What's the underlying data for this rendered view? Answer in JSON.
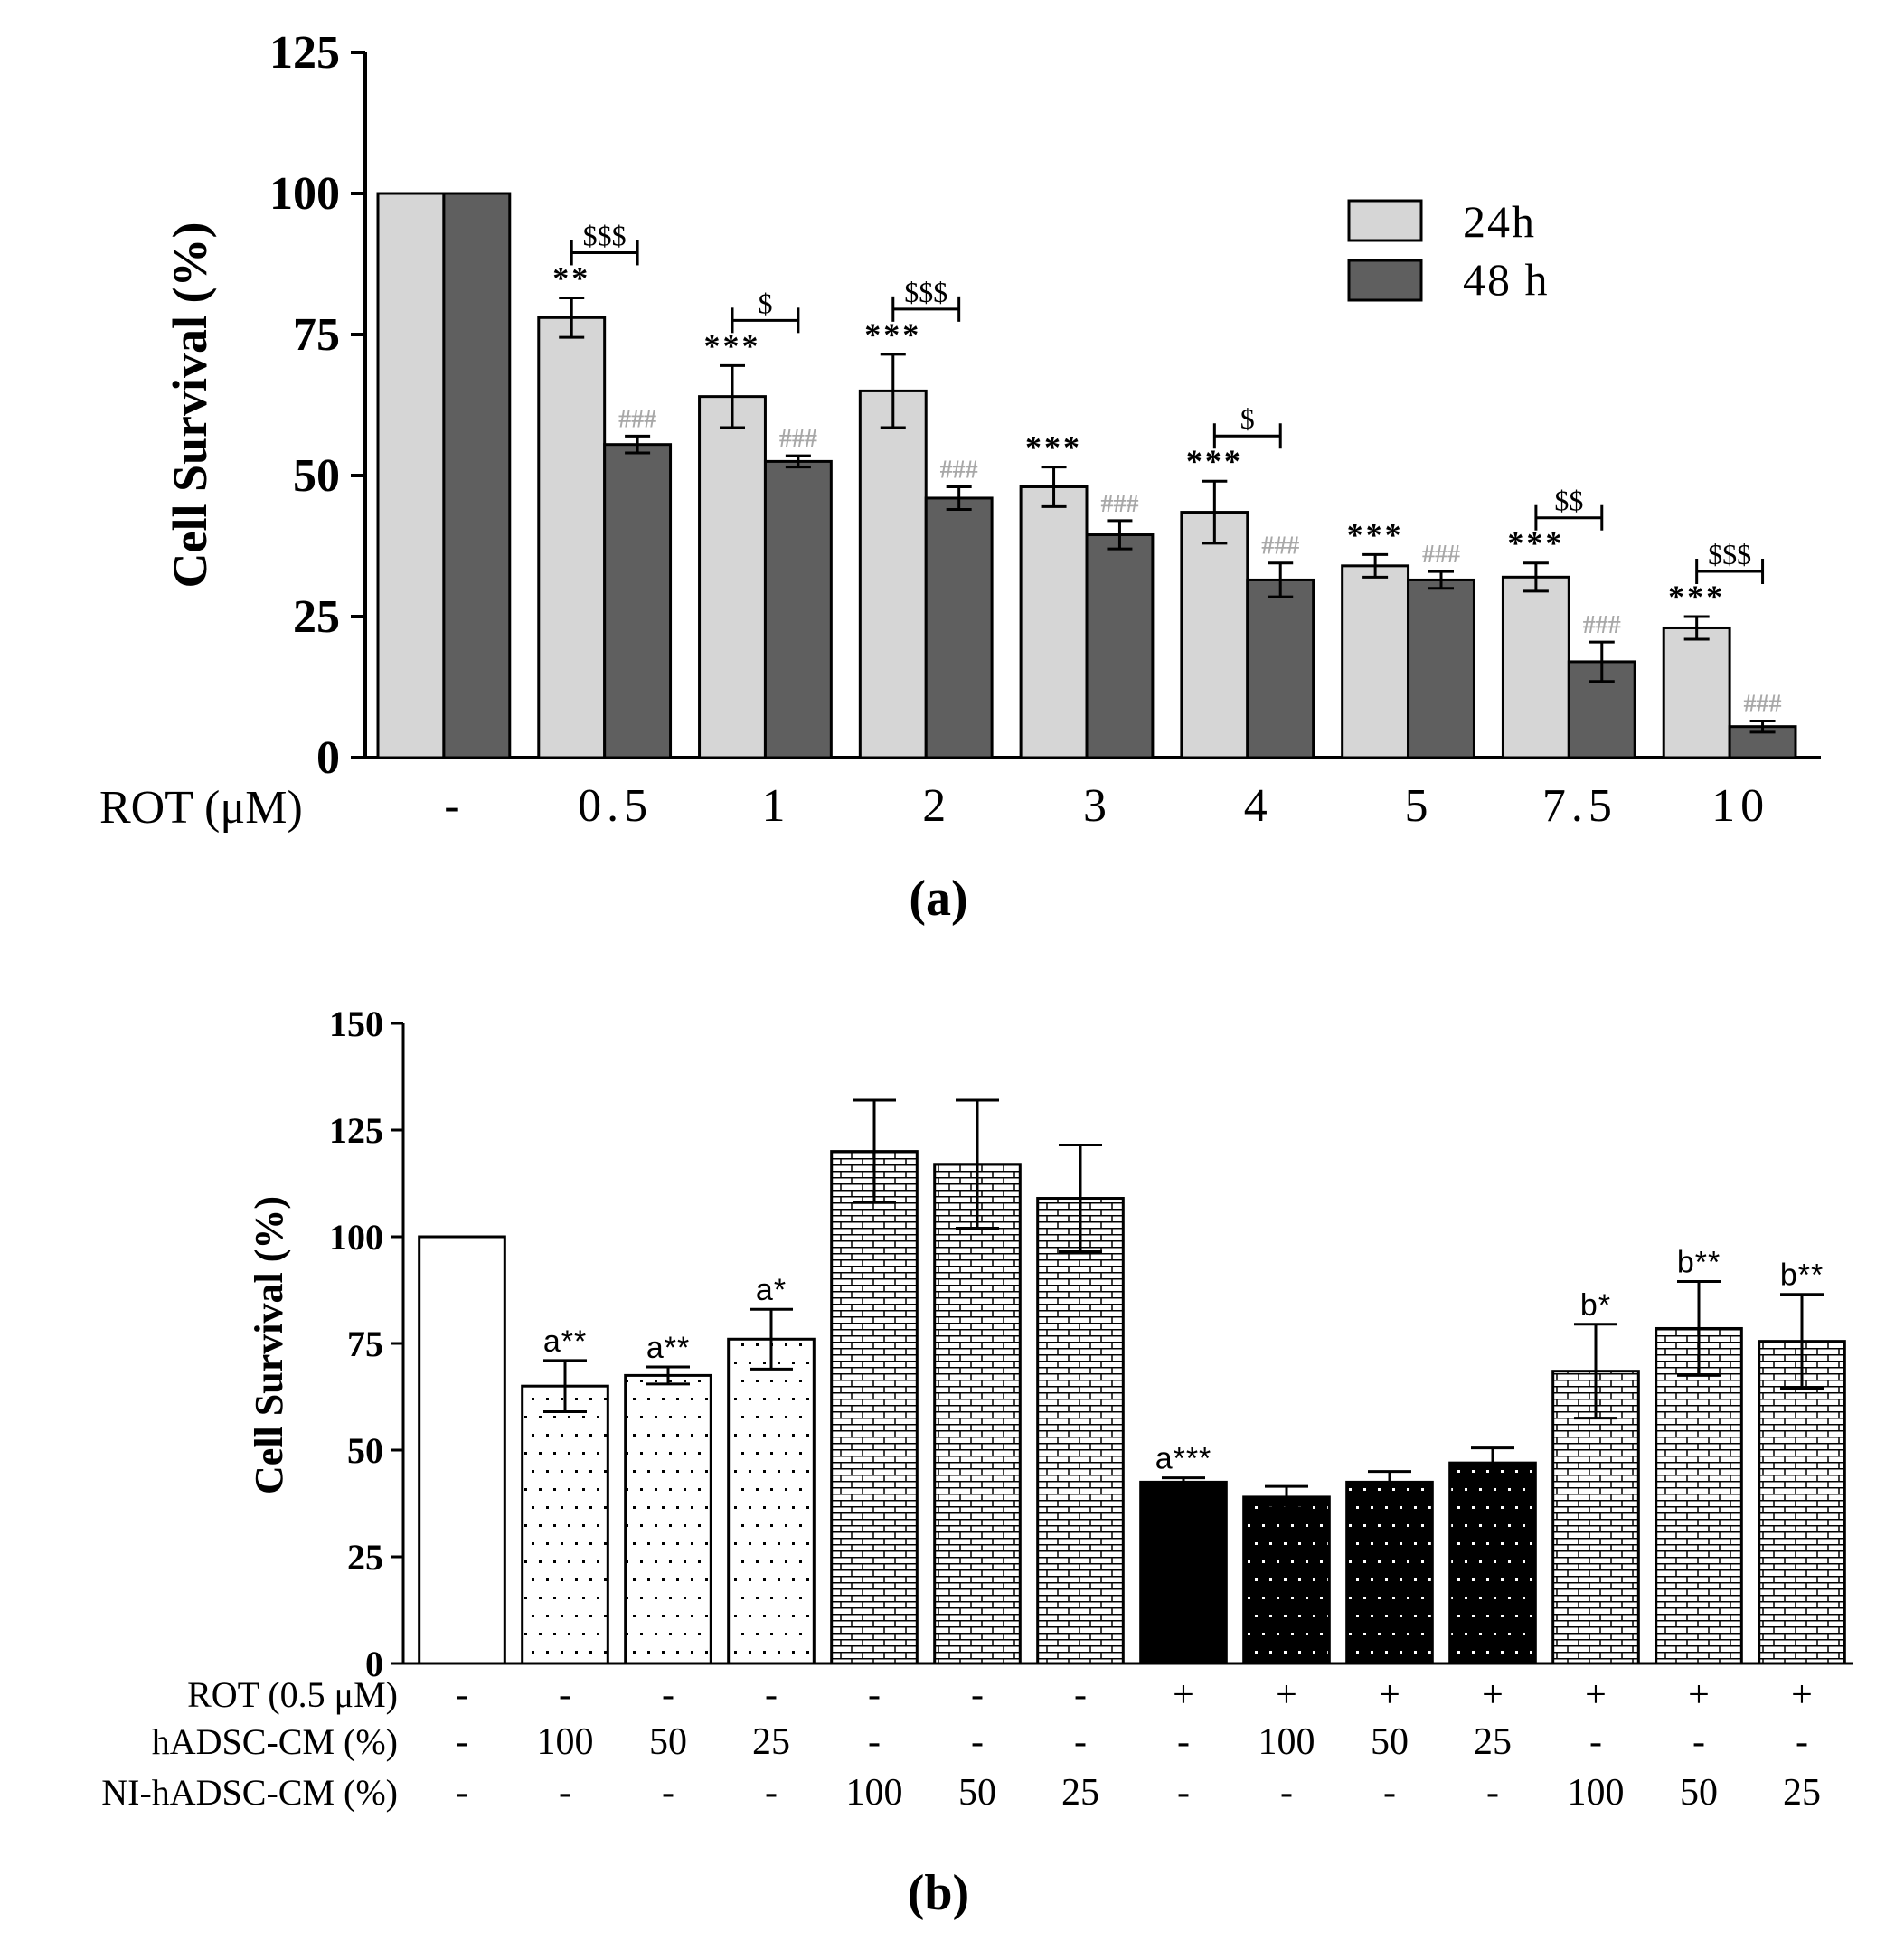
{
  "chart_data": [
    {
      "type": "bar",
      "panel": "(a)",
      "ylabel": "Cell Survival (%)",
      "xlabel": "ROT (μM)",
      "ylim": [
        0,
        125
      ],
      "yticks": [
        "0",
        "25",
        "50",
        "75",
        "100",
        "125"
      ],
      "categories": [
        "-",
        "0.5",
        "1",
        "2",
        "3",
        "4",
        "5",
        "7.5",
        "10"
      ],
      "series": [
        {
          "name": "24h",
          "color": "#d6d6d6",
          "values": [
            100,
            78,
            64,
            65,
            48,
            43.5,
            34,
            32,
            23
          ],
          "errors": [
            0,
            3.5,
            5.5,
            6.5,
            3.5,
            5.5,
            2,
            2.5,
            2
          ],
          "annotations": [
            "",
            "**",
            "***",
            "***",
            "***",
            "***",
            "***",
            "***",
            "***"
          ]
        },
        {
          "name": "48 h",
          "color": "#5f5f5f",
          "values": [
            100,
            55.5,
            52.5,
            46,
            39.5,
            31.5,
            31.5,
            17,
            5.5
          ],
          "errors": [
            0,
            1.5,
            1,
            2,
            2.5,
            3,
            1.5,
            3.5,
            1
          ],
          "annotations": [
            "",
            "###",
            "###",
            "###",
            "###",
            "###",
            "###",
            "###",
            "###"
          ]
        }
      ],
      "comparisons": [
        {
          "category": "0.5",
          "label": "$$$"
        },
        {
          "category": "1",
          "label": "$"
        },
        {
          "category": "2",
          "label": "$$$"
        },
        {
          "category": "4",
          "label": "$"
        },
        {
          "category": "7.5",
          "label": "$$"
        },
        {
          "category": "10",
          "label": "$$$"
        }
      ]
    },
    {
      "type": "bar",
      "panel": "(b)",
      "ylabel": "Cell Survival (%)",
      "ylim": [
        0,
        150
      ],
      "yticks": [
        "0",
        "25",
        "50",
        "75",
        "100",
        "125",
        "150"
      ],
      "values": [
        100,
        65,
        67.5,
        76,
        120,
        117,
        109,
        42.5,
        39,
        42.5,
        47,
        68.5,
        78.5,
        75.5
      ],
      "errors": [
        0,
        6,
        2,
        7,
        12,
        15,
        12.5,
        1,
        2.5,
        2.5,
        3.5,
        11,
        11,
        11
      ],
      "annotations": [
        "",
        "a**",
        "a**",
        "a*",
        "",
        "",
        "",
        "a***",
        "",
        "",
        "",
        "b*",
        "b**",
        "b**"
      ],
      "fills": [
        "white",
        "white-dots",
        "white-dots",
        "white-dots",
        "white-bricks",
        "white-bricks",
        "white-bricks",
        "black",
        "black-dots",
        "black-dots",
        "black-dots",
        "white-bricks",
        "white-bricks",
        "white-bricks"
      ],
      "condition_rows": [
        {
          "label": "ROT (0.5 μM)",
          "values": [
            "-",
            "-",
            "-",
            "-",
            "-",
            "-",
            "-",
            "+",
            "+",
            "+",
            "+",
            "+",
            "+",
            "+"
          ]
        },
        {
          "label": "hADSC-CM (%)",
          "values": [
            "-",
            "100",
            "50",
            "25",
            "-",
            "-",
            "-",
            "-",
            "100",
            "50",
            "25",
            "-",
            "-",
            "-"
          ]
        },
        {
          "label": "NI-hADSC-CM (%)",
          "values": [
            "-",
            "-",
            "-",
            "-",
            "100",
            "50",
            "25",
            "-",
            "-",
            "-",
            "-",
            "100",
            "50",
            "25"
          ]
        }
      ]
    }
  ]
}
